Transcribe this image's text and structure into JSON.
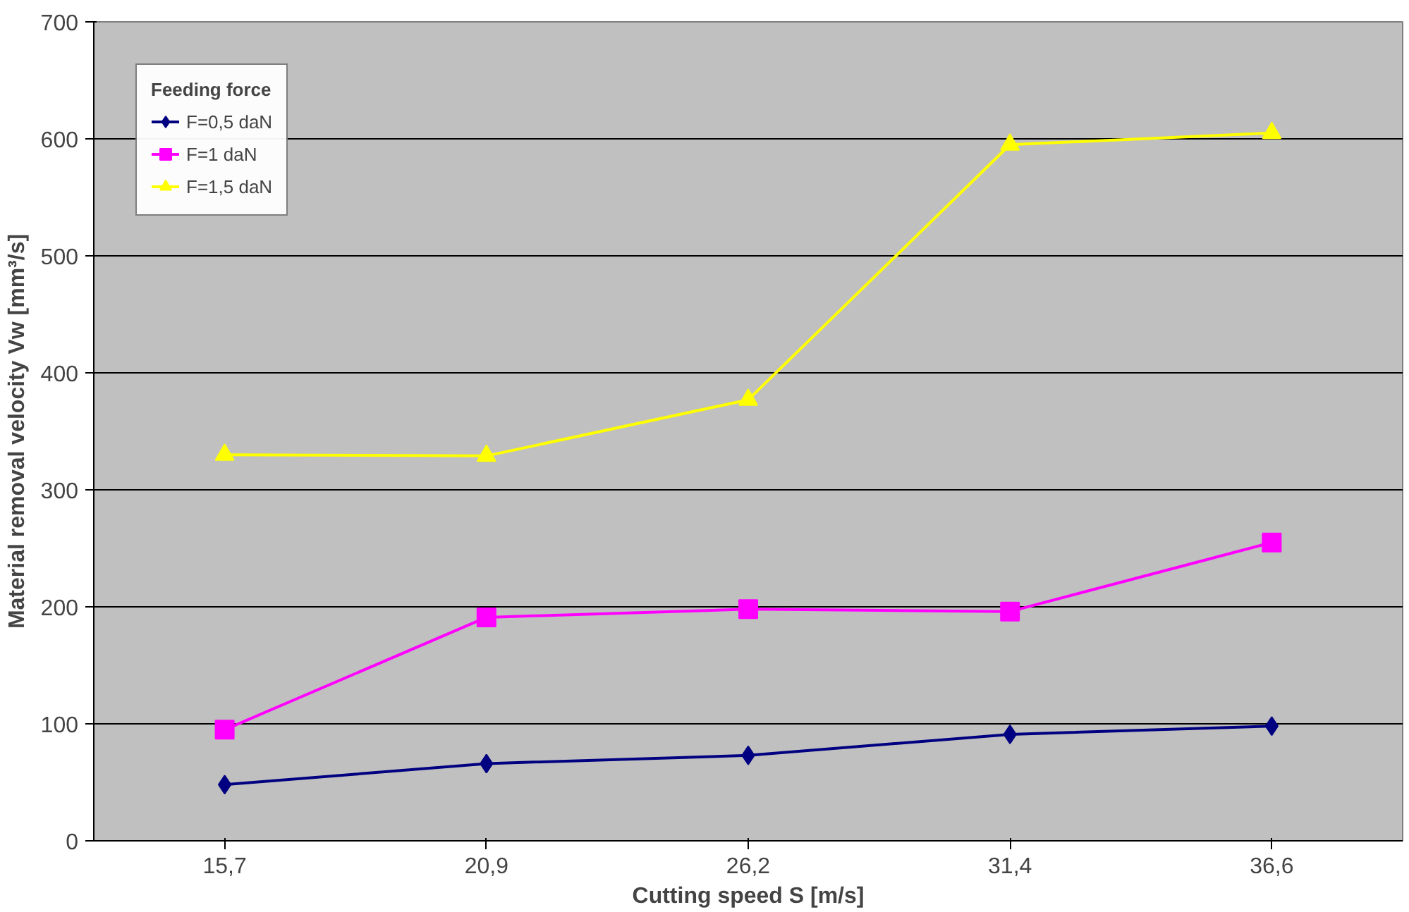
{
  "chart_data": {
    "type": "line",
    "xlabel": "Cutting speed S [m/s]",
    "ylabel": "Material removal velocity Vw [mm³/s]",
    "legend_title": "Feeding force",
    "categories": [
      "15,7",
      "20,9",
      "26,2",
      "31,4",
      "36,6"
    ],
    "series": [
      {
        "name": "F=0,5 daN",
        "color": "#000080",
        "marker": "diamond",
        "values": [
          48,
          66,
          73,
          91,
          98
        ]
      },
      {
        "name": "F=1 daN",
        "color": "#ff00ff",
        "marker": "square",
        "values": [
          95,
          191,
          198,
          196,
          255
        ]
      },
      {
        "name": "F=1,5 daN",
        "color": "#ffff00",
        "marker": "triangle",
        "values": [
          330,
          329,
          377,
          595,
          605
        ]
      }
    ],
    "ylim": [
      0,
      700
    ],
    "yticks": [
      0,
      100,
      200,
      300,
      400,
      500,
      600,
      700
    ],
    "grid": "y",
    "legend": "top left",
    "line_style": "solid"
  }
}
